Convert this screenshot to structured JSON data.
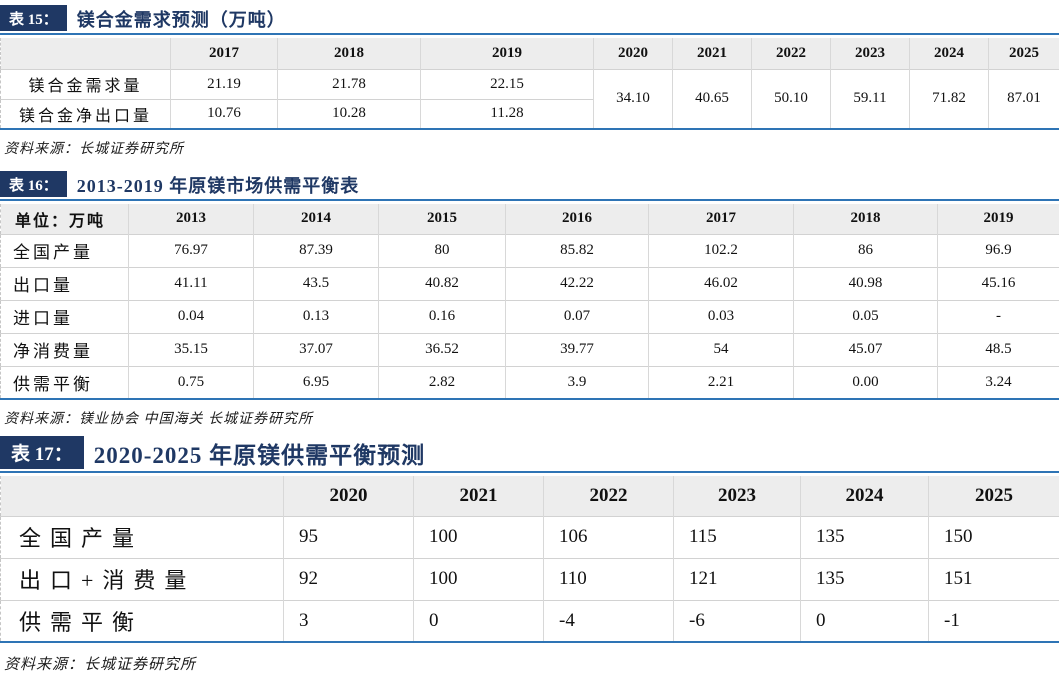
{
  "theme": {
    "navy": "#1f3864",
    "rule_blue": "#2e74b5",
    "header_bg": "#ededed"
  },
  "tables": [
    {
      "badge": "表 15：",
      "title": "镁合金需求预测（万吨）",
      "columns": [
        "2017",
        "2018",
        "2019",
        "2020",
        "2021",
        "2022",
        "2023",
        "2024",
        "2025"
      ],
      "rows": [
        {
          "label": "镁合金需求量",
          "values": [
            "21.19",
            "21.78",
            "22.15"
          ]
        },
        {
          "label": "镁合金净出口量",
          "values": [
            "10.76",
            "10.28",
            "11.28"
          ]
        }
      ],
      "merged_forecast": [
        "34.10",
        "40.65",
        "50.10",
        "59.11",
        "71.82",
        "87.01"
      ],
      "source": "资料来源：长城证券研究所"
    },
    {
      "badge": "表 16：",
      "title": "2013-2019 年原镁市场供需平衡表",
      "unit_header": "单位：万吨",
      "columns": [
        "2013",
        "2014",
        "2015",
        "2016",
        "2017",
        "2018",
        "2019"
      ],
      "rows": [
        {
          "label": "全国产量",
          "values": [
            "76.97",
            "87.39",
            "80",
            "85.82",
            "102.2",
            "86",
            "96.9"
          ]
        },
        {
          "label": "出口量",
          "values": [
            "41.11",
            "43.5",
            "40.82",
            "42.22",
            "46.02",
            "40.98",
            "45.16"
          ]
        },
        {
          "label": "进口量",
          "values": [
            "0.04",
            "0.13",
            "0.16",
            "0.07",
            "0.03",
            "0.05",
            "-"
          ]
        },
        {
          "label": "净消费量",
          "values": [
            "35.15",
            "37.07",
            "36.52",
            "39.77",
            "54",
            "45.07",
            "48.5"
          ]
        },
        {
          "label": "供需平衡",
          "values": [
            "0.75",
            "6.95",
            "2.82",
            "3.9",
            "2.21",
            "0.00",
            "3.24"
          ]
        }
      ],
      "source": "资料来源：镁业协会 中国海关 长城证券研究所"
    },
    {
      "badge": "表 17：",
      "title": "2020-2025 年原镁供需平衡预测",
      "columns": [
        "2020",
        "2021",
        "2022",
        "2023",
        "2024",
        "2025"
      ],
      "rows": [
        {
          "label": "全国产量",
          "values": [
            "95",
            "100",
            "106",
            "115",
            "135",
            "150"
          ]
        },
        {
          "label": "出口+消费量",
          "values": [
            "92",
            "100",
            "110",
            "121",
            "135",
            "151"
          ]
        },
        {
          "label": "供需平衡",
          "values": [
            "3",
            "0",
            "-4",
            "-6",
            "0",
            "-1"
          ]
        }
      ],
      "source": "资料来源：长城证券研究所"
    }
  ]
}
